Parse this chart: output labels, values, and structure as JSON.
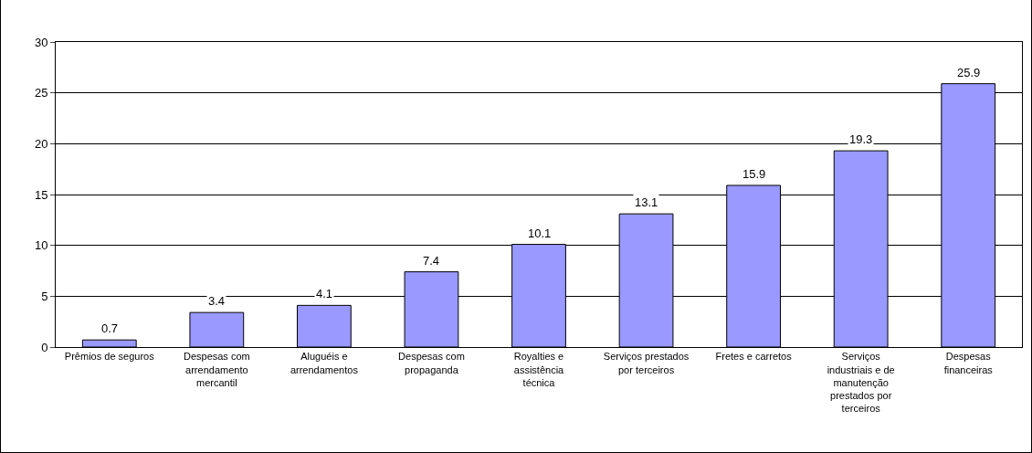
{
  "chart_data": {
    "type": "bar",
    "categories": [
      "Prêmios de seguros",
      "Despesas com arrendamento mercantil",
      "Aluguéis e arrendamentos",
      "Despesas com propaganda",
      "Royalties e assistência técnica",
      "Serviços prestados por terceiros",
      "Fretes e carretos",
      "Serviços industriais e de manutenção prestados por terceiros",
      "Despesas financeiras"
    ],
    "values": [
      0.7,
      3.4,
      4.1,
      7.4,
      10.1,
      13.1,
      15.9,
      19.3,
      25.9
    ],
    "color": "#9999ff",
    "ylim": [
      0,
      30
    ],
    "yticks": [
      0,
      5,
      10,
      15,
      20,
      25,
      30
    ],
    "grid": "y",
    "data_labels": true,
    "legend": false
  }
}
